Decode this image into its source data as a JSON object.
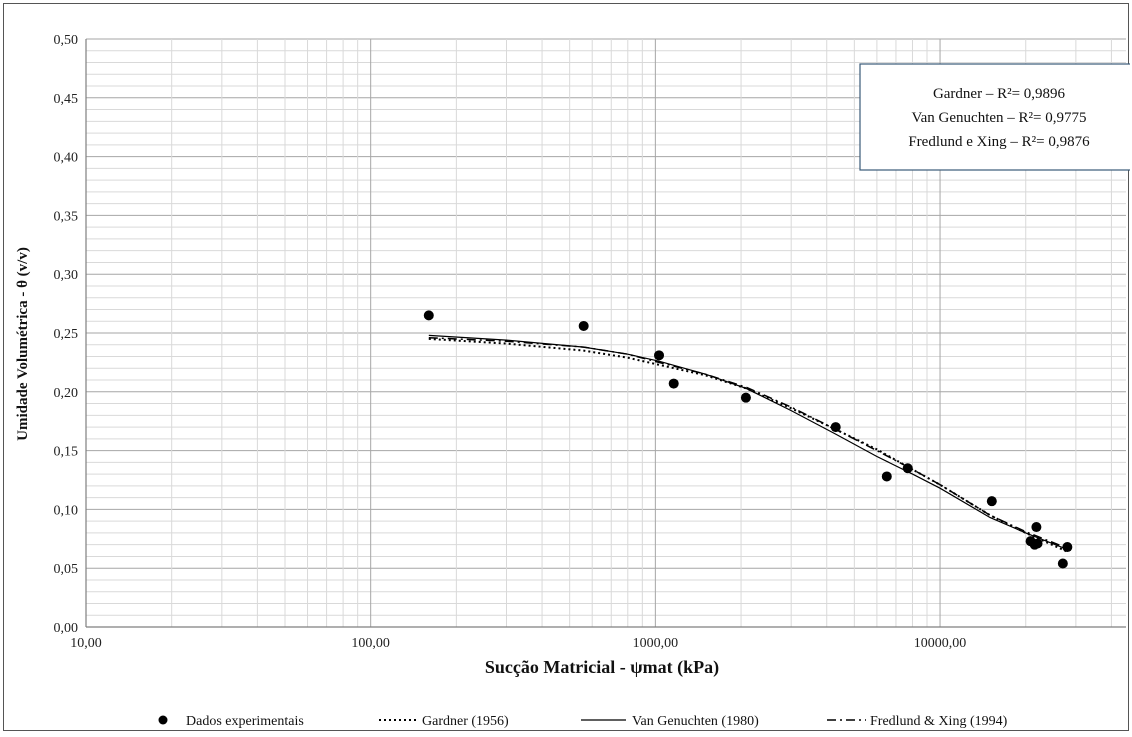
{
  "chart_data": {
    "type": "scatter",
    "xlabel": "Sucção Matricial - ψmat (kPa)",
    "ylabel": "Umidade Volumétrica - θ (v/v)",
    "x_scale": "log",
    "xlim": [
      10,
      45000
    ],
    "ylim": [
      0,
      0.5
    ],
    "grid": true,
    "x_ticks": [
      10,
      100,
      1000,
      10000
    ],
    "x_tick_labels": [
      "10,00",
      "100,00",
      "1000,00",
      "10000,00"
    ],
    "y_ticks": [
      0,
      0.05,
      0.1,
      0.15,
      0.2,
      0.25,
      0.3,
      0.35,
      0.4,
      0.45,
      0.5
    ],
    "y_tick_labels": [
      "0,00",
      "0,05",
      "0,10",
      "0,15",
      "0,20",
      "0,25",
      "0,30",
      "0,35",
      "0,40",
      "0,45",
      "0,50"
    ],
    "annotation": [
      "Gardner – R²= 0,9896",
      "Van Genuchten – R²= 0,9775",
      "Fredlund e Xing – R²= 0,9876"
    ],
    "legend_position": "bottom",
    "series": [
      {
        "name": "Dados experimentais",
        "kind": "points",
        "x": [
          160,
          560,
          1030,
          1160,
          2080,
          4300,
          6500,
          7700,
          15200,
          20800,
          21500,
          21800,
          22000,
          27000,
          28000
        ],
        "y": [
          0.265,
          0.256,
          0.231,
          0.207,
          0.195,
          0.17,
          0.128,
          0.135,
          0.107,
          0.073,
          0.07,
          0.085,
          0.071,
          0.054,
          0.068
        ]
      },
      {
        "name": "Gardner (1956)",
        "kind": "line",
        "dash": "dotted",
        "x": [
          160,
          300,
          560,
          800,
          1030,
          1500,
          2080,
          3000,
          4300,
          6000,
          8000,
          10000,
          15000,
          20000,
          28000
        ],
        "y": [
          0.245,
          0.241,
          0.235,
          0.229,
          0.223,
          0.214,
          0.203,
          0.186,
          0.168,
          0.151,
          0.134,
          0.121,
          0.095,
          0.08,
          0.064
        ]
      },
      {
        "name": "Van Genuchten (1980)",
        "kind": "line",
        "dash": "solid",
        "x": [
          160,
          300,
          560,
          800,
          1030,
          1500,
          2080,
          3000,
          4300,
          6000,
          8000,
          10000,
          15000,
          20000,
          28000
        ],
        "y": [
          0.248,
          0.244,
          0.238,
          0.232,
          0.226,
          0.215,
          0.203,
          0.184,
          0.164,
          0.145,
          0.13,
          0.118,
          0.093,
          0.08,
          0.066
        ]
      },
      {
        "name": "Fredlund & Xing (1994)",
        "kind": "line",
        "dash": "dashdot",
        "x": [
          160,
          300,
          560,
          800,
          1030,
          1500,
          2080,
          3000,
          4300,
          6000,
          8000,
          10000,
          15000,
          20000,
          28000
        ],
        "y": [
          0.246,
          0.243,
          0.238,
          0.232,
          0.225,
          0.215,
          0.204,
          0.187,
          0.168,
          0.15,
          0.134,
          0.121,
          0.095,
          0.081,
          0.067
        ]
      }
    ]
  }
}
